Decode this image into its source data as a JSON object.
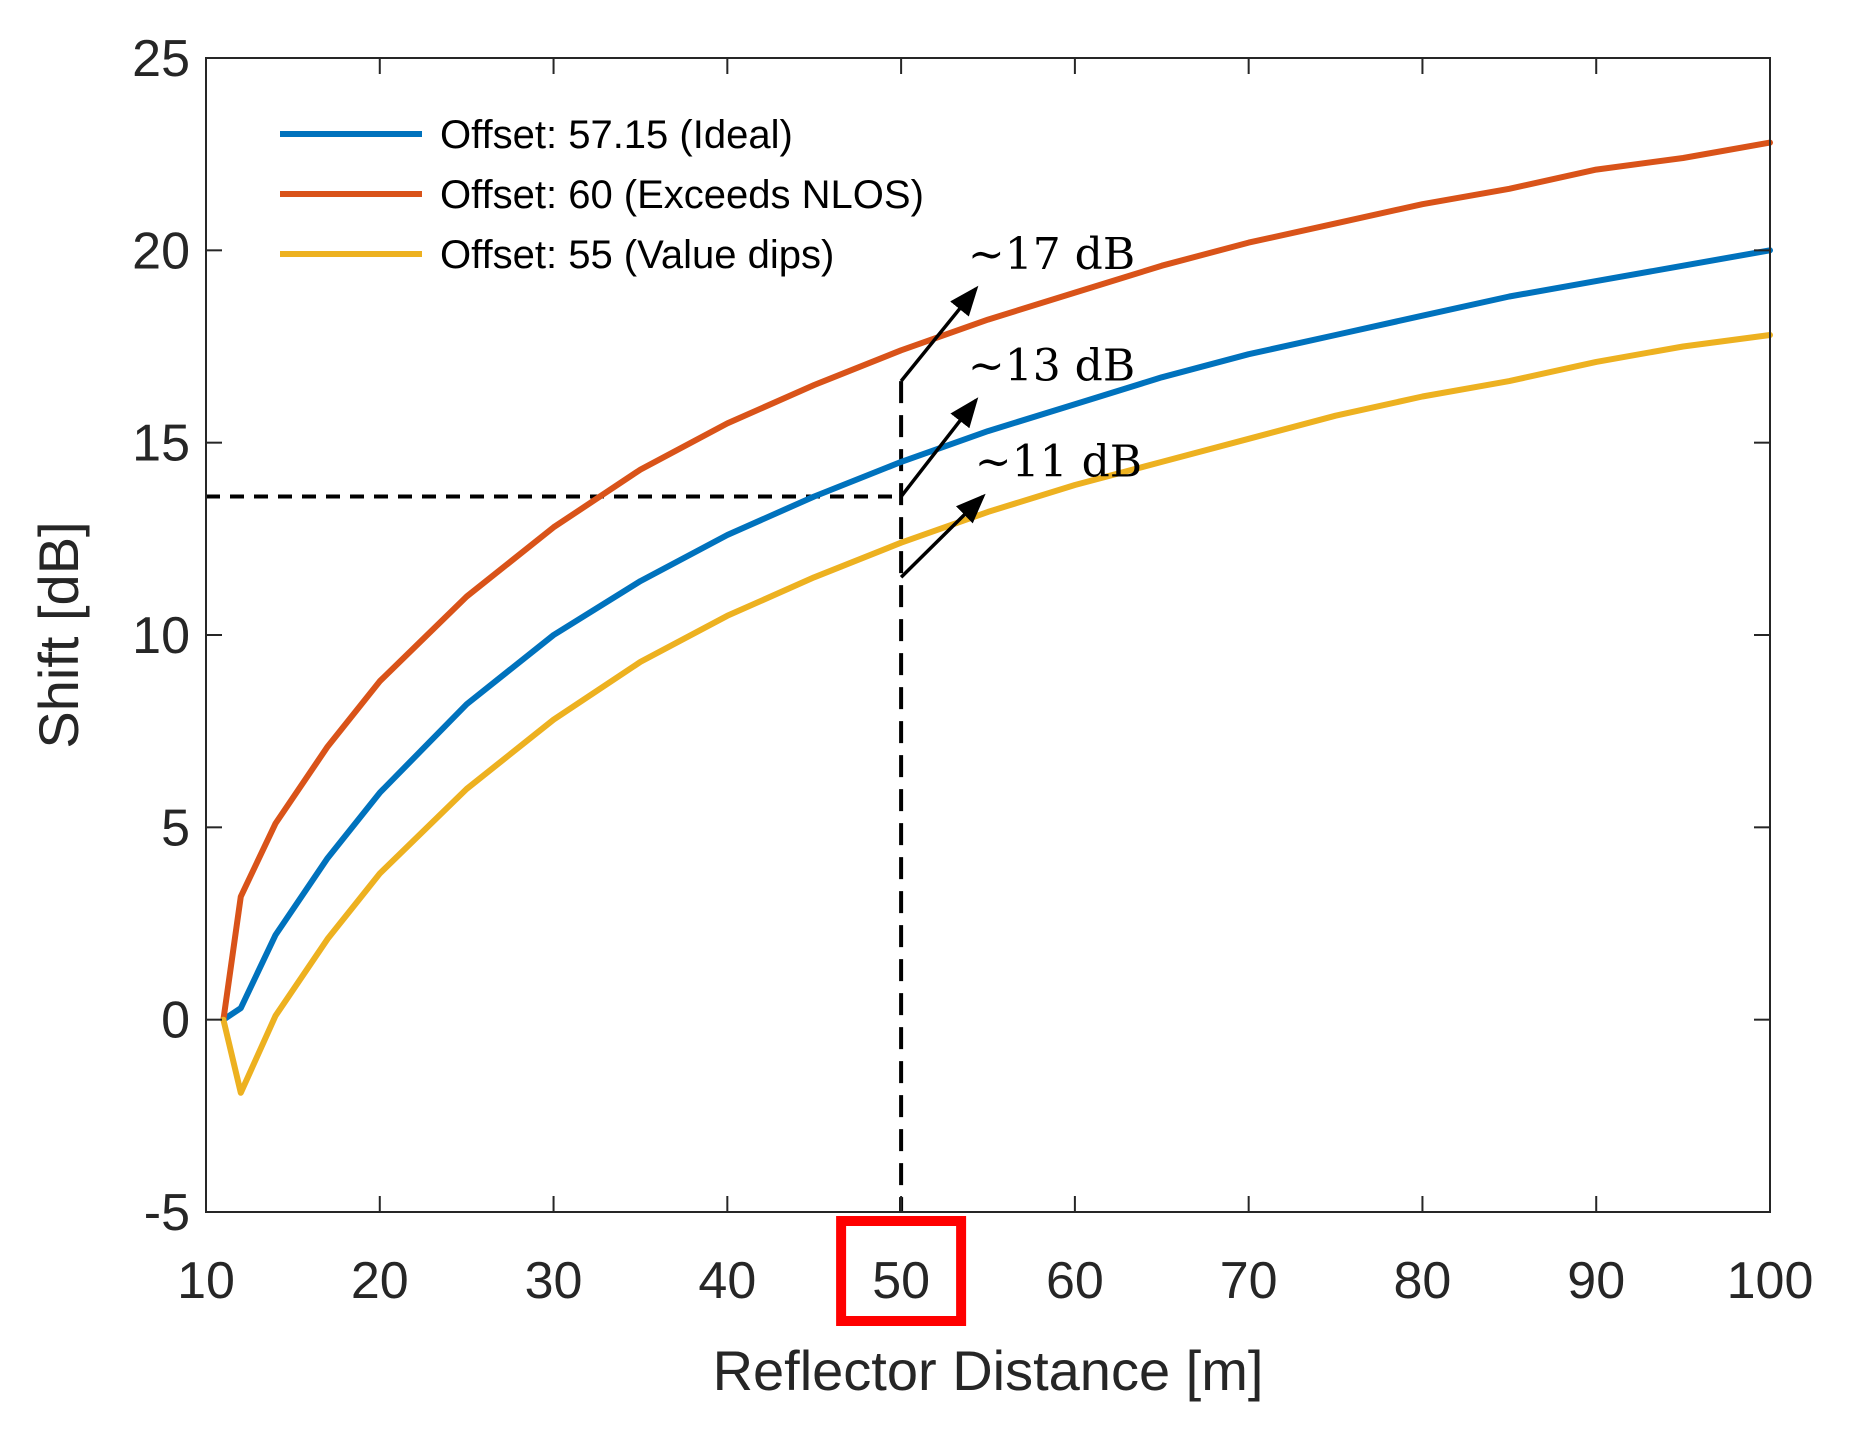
{
  "chart_data": {
    "type": "line",
    "title": "",
    "xlabel": "Reflector Distance [m]",
    "ylabel": "Shift [dB]",
    "xlim": [
      10,
      100
    ],
    "ylim": [
      -5,
      25
    ],
    "xticks": [
      10,
      20,
      30,
      40,
      50,
      60,
      70,
      80,
      90,
      100
    ],
    "yticks": [
      -5,
      0,
      5,
      10,
      15,
      20,
      25
    ],
    "grid": false,
    "legend_position": "top-left",
    "x": [
      11,
      12,
      14,
      17,
      20,
      25,
      30,
      35,
      40,
      45,
      50,
      55,
      60,
      65,
      70,
      75,
      80,
      85,
      90,
      95,
      100
    ],
    "series": [
      {
        "name": "Offset: 57.15 (Ideal)",
        "color": "#0072BD",
        "values": [
          0.0,
          0.3,
          2.2,
          4.2,
          5.9,
          8.2,
          10.0,
          11.4,
          12.6,
          13.6,
          14.5,
          15.3,
          16.0,
          16.7,
          17.3,
          17.8,
          18.3,
          18.8,
          19.2,
          19.6,
          20.0
        ]
      },
      {
        "name": "Offset: 60 (Exceeds NLOS)",
        "color": "#D95319",
        "values": [
          0.0,
          3.2,
          5.1,
          7.1,
          8.8,
          11.0,
          12.8,
          14.3,
          15.5,
          16.5,
          17.4,
          18.2,
          18.9,
          19.6,
          20.2,
          20.7,
          21.2,
          21.6,
          22.1,
          22.4,
          22.8
        ]
      },
      {
        "name": "Offset: 55 (Value dips)",
        "color": "#EDB120",
        "values": [
          0.0,
          -1.9,
          0.1,
          2.1,
          3.8,
          6.0,
          7.8,
          9.3,
          10.5,
          11.5,
          12.4,
          13.2,
          13.9,
          14.5,
          15.1,
          15.7,
          16.2,
          16.6,
          17.1,
          17.5,
          17.8
        ]
      }
    ],
    "reference_lines": {
      "vertical_x": 50,
      "vertical_top_y": 16.6,
      "horizontal_y": 13.6
    },
    "annotations": [
      {
        "text": "~17 dB",
        "from": [
          50,
          16.6
        ],
        "to": [
          54.3,
          19.0
        ]
      },
      {
        "text": "~13 dB",
        "from": [
          50,
          13.6
        ],
        "to": [
          54.3,
          16.1
        ]
      },
      {
        "text": "~11 dB",
        "from": [
          50,
          11.5
        ],
        "to": [
          54.7,
          13.6
        ]
      }
    ],
    "highlight": {
      "tick": 50,
      "color": "#FF0000"
    }
  }
}
